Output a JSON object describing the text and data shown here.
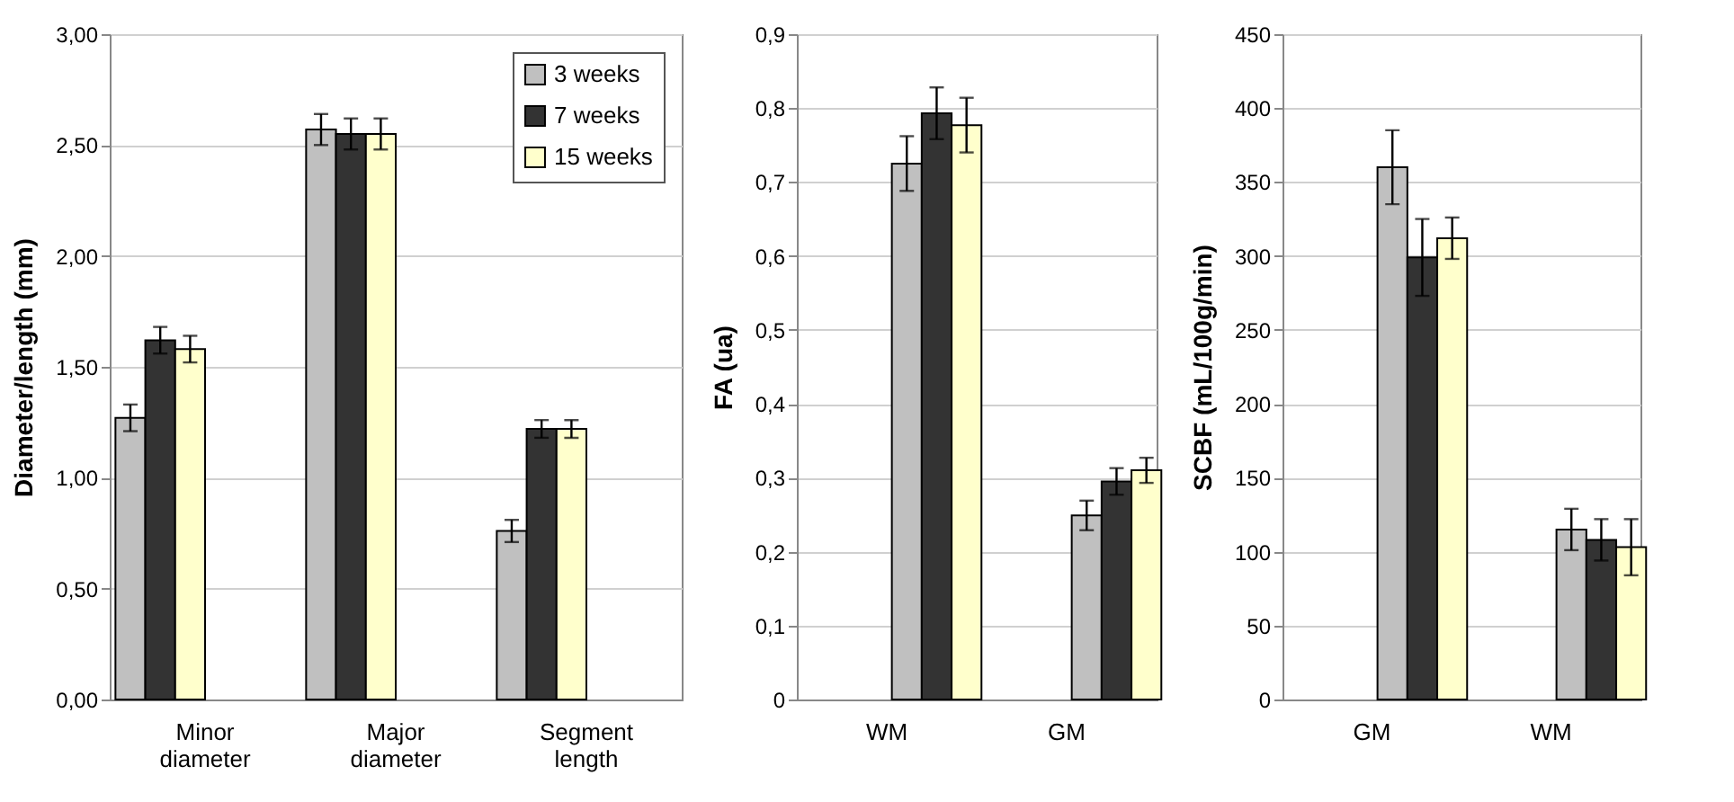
{
  "chart_data": [
    {
      "type": "bar",
      "ylabel": "Diameter/length (mm)",
      "categories": [
        "Minor diameter",
        "Major diameter",
        "Segment length"
      ],
      "ylim": [
        0,
        3
      ],
      "yticks": [
        {
          "value": 0,
          "label": "0,00"
        },
        {
          "value": 0.5,
          "label": "0,50"
        },
        {
          "value": 1,
          "label": "1,00"
        },
        {
          "value": 1.5,
          "label": "1,50"
        },
        {
          "value": 2,
          "label": "2,00"
        },
        {
          "value": 2.5,
          "label": "2,50"
        },
        {
          "value": 3,
          "label": "3,00"
        }
      ],
      "series": [
        {
          "name": "3 weeks",
          "color": "#c0c0c0",
          "values": [
            1.27,
            2.57,
            0.76
          ],
          "errors": [
            0.06,
            0.07,
            0.05
          ]
        },
        {
          "name": "7 weeks",
          "color": "#333333",
          "values": [
            1.62,
            2.55,
            1.22
          ],
          "errors": [
            0.06,
            0.07,
            0.04
          ]
        },
        {
          "name": "15 weeks",
          "color": "#ffffcc",
          "values": [
            1.58,
            2.55,
            1.22
          ],
          "errors": [
            0.06,
            0.07,
            0.04
          ]
        }
      ],
      "grid": "y",
      "legend": "top right"
    },
    {
      "type": "bar",
      "ylabel": "FA (ua)",
      "categories": [
        "WM",
        "GM"
      ],
      "ylim": [
        0,
        0.9
      ],
      "yticks": [
        0,
        {
          "value": 0.1,
          "label": "0,1"
        },
        {
          "value": 0.2,
          "label": "0,2"
        },
        {
          "value": 0.3,
          "label": "0,3"
        },
        {
          "value": 0.4,
          "label": "0,4"
        },
        {
          "value": 0.5,
          "label": "0,5"
        },
        {
          "value": 0.6,
          "label": "0,6"
        },
        {
          "value": 0.7,
          "label": "0,7"
        },
        {
          "value": 0.8,
          "label": "0,8"
        },
        {
          "value": 0.9,
          "label": "0,9"
        }
      ],
      "series": [
        {
          "color": "#c0c0c0",
          "values": [
            0.725,
            0.249
          ],
          "errors": [
            0.037,
            0.02
          ]
        },
        {
          "color": "#333333",
          "values": [
            0.793,
            0.295
          ],
          "errors": [
            0.035,
            0.018
          ]
        },
        {
          "color": "#ffffcc",
          "values": [
            0.777,
            0.31
          ],
          "errors": [
            0.037,
            0.017
          ]
        }
      ],
      "grid": "y"
    },
    {
      "type": "bar",
      "ylabel": "SCBF (mL/100g/min)",
      "categories": [
        "GM",
        "WM"
      ],
      "ylim": [
        0,
        450
      ],
      "yticks": [
        0,
        50,
        100,
        150,
        200,
        250,
        300,
        350,
        400,
        450
      ],
      "series": [
        {
          "color": "#c0c0c0",
          "values": [
            360,
            115
          ],
          "errors": [
            25,
            14
          ]
        },
        {
          "color": "#333333",
          "values": [
            299,
            108
          ],
          "errors": [
            26,
            14
          ]
        },
        {
          "color": "#ffffcc",
          "values": [
            312,
            103
          ],
          "errors": [
            14,
            19
          ]
        }
      ],
      "grid": "y"
    }
  ]
}
